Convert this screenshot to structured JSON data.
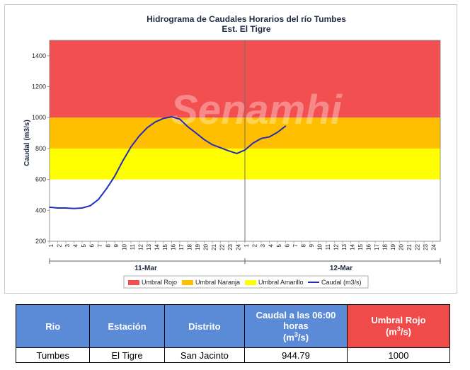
{
  "chart": {
    "title_line1": "Hidrograma de Caudales Horarios del río Tumbes",
    "title_line2": "Est. El Tigre",
    "ylabel": "Caudal  (m3/s)",
    "watermark": "Senamhi",
    "day_labels": [
      "11-Mar",
      "12-Mar"
    ],
    "legend": [
      "Umbral Rojo",
      "Umbral Naranja",
      "Umbral Amarillo",
      "Caudal (m3/s)"
    ],
    "colors": {
      "rojo": "#f25050",
      "naranja": "#ffbf00",
      "amarillo": "#ffff00",
      "caudal": "#1f2fb8"
    }
  },
  "chart_data": {
    "type": "line",
    "title": "Hidrograma de Caudales Horarios del río Tumbes",
    "subtitle": "Est. El Tigre",
    "ylabel": "Caudal  (m3/s)",
    "ylim": [
      200,
      1500
    ],
    "yticks": [
      200,
      400,
      600,
      800,
      1000,
      1200,
      1400
    ],
    "x_ticks": [
      "1",
      "2",
      "3",
      "4",
      "5",
      "6",
      "7",
      "8",
      "9",
      "10",
      "11",
      "12",
      "13",
      "14",
      "15",
      "16",
      "17",
      "18",
      "19",
      "20",
      "21",
      "22",
      "23",
      "24",
      "1",
      "2",
      "3",
      "4",
      "5",
      "6",
      "7",
      "8",
      "9",
      "10",
      "11",
      "12",
      "13",
      "14",
      "15",
      "16",
      "17",
      "18",
      "19",
      "20",
      "21",
      "22",
      "23",
      "24"
    ],
    "x_groups": [
      "11-Mar",
      "12-Mar"
    ],
    "thresholds": [
      {
        "name": "Umbral Amarillo",
        "from": 600,
        "to": 800
      },
      {
        "name": "Umbral Naranja",
        "from": 800,
        "to": 1000
      },
      {
        "name": "Umbral Rojo",
        "from": 1000,
        "to": 1500
      }
    ],
    "series": [
      {
        "name": "Caudal (m3/s)",
        "x": [
          1,
          2,
          3,
          4,
          5,
          6,
          7,
          8,
          9,
          10,
          11,
          12,
          13,
          14,
          15,
          16,
          17,
          18,
          19,
          20,
          21,
          22,
          23,
          24,
          25,
          26,
          27,
          28,
          29,
          30
        ],
        "values": [
          420,
          415,
          415,
          412,
          415,
          430,
          470,
          540,
          620,
          720,
          810,
          880,
          935,
          972,
          995,
          1005,
          990,
          940,
          900,
          858,
          825,
          805,
          785,
          768,
          790,
          835,
          865,
          875,
          905,
          945
        ]
      }
    ],
    "grid": false,
    "legend_position": "bottom"
  },
  "table": {
    "headers": [
      "Rio",
      "Estación",
      "Distrito",
      "Caudal a las 06:00 horas",
      "Umbral Rojo"
    ],
    "unit_prefix": "(m",
    "unit_sup": "3",
    "unit_suffix": "/s)",
    "row": [
      "Tumbes",
      "El Tigre",
      "San Jacinto",
      "944.79",
      "1000"
    ]
  }
}
